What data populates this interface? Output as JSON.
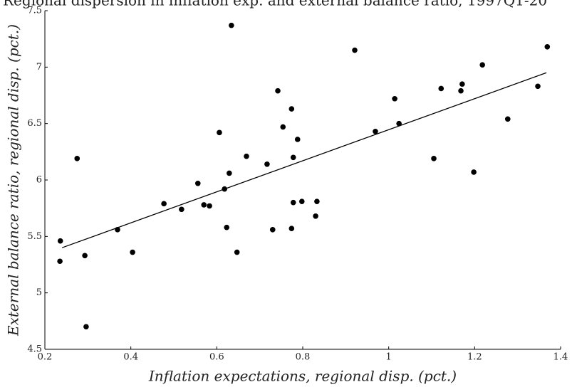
{
  "chart_data": {
    "type": "scatter",
    "title": "Regional dispersion in inflation exp. and external balance ratio, 1997Q1-20",
    "x_label": "Inflation expectations, regional disp. (pct.)",
    "y_label": "External balance ratio, regional disp. (pct.)",
    "xlim": [
      0.2,
      1.4
    ],
    "xticks": [
      0.2,
      0.4,
      0.6,
      0.8,
      1,
      1.2,
      1.4
    ],
    "ylim": [
      4.5,
      7.5
    ],
    "yticks": [
      4.5,
      5,
      5.5,
      6,
      6.5,
      7,
      7.5
    ],
    "series": [
      {
        "color": "#000000",
        "x": [
          0.236,
          0.235,
          0.275,
          0.293,
          0.296,
          0.369,
          0.404,
          0.477,
          0.518,
          0.583,
          0.556,
          0.57,
          0.606,
          0.618,
          0.623,
          0.629,
          0.634,
          0.647,
          0.669,
          0.717,
          0.73,
          0.742,
          0.754,
          0.774,
          0.774,
          0.778,
          0.778,
          0.788,
          0.798,
          0.83,
          0.833,
          0.921,
          0.969,
          1.014,
          1.024,
          1.105,
          1.122,
          1.168,
          1.171,
          1.198,
          1.218,
          1.277,
          1.347,
          1.369
        ],
        "values": [
          5.46,
          5.28,
          6.19,
          5.33,
          4.7,
          5.56,
          5.36,
          5.79,
          5.74,
          5.77,
          5.97,
          5.78,
          6.42,
          5.92,
          5.58,
          6.06,
          7.37,
          5.36,
          6.21,
          6.14,
          5.56,
          6.79,
          6.47,
          6.63,
          5.57,
          6.2,
          5.8,
          6.36,
          5.81,
          5.68,
          5.81,
          7.15,
          6.43,
          6.72,
          6.5,
          6.19,
          6.81,
          6.79,
          6.85,
          6.07,
          7.02,
          6.54,
          6.83,
          7.18
        ]
      }
    ],
    "fit_line": {
      "color": "#000000",
      "x": [
        0.24,
        1.367
      ],
      "values": [
        5.4,
        6.95
      ]
    }
  }
}
